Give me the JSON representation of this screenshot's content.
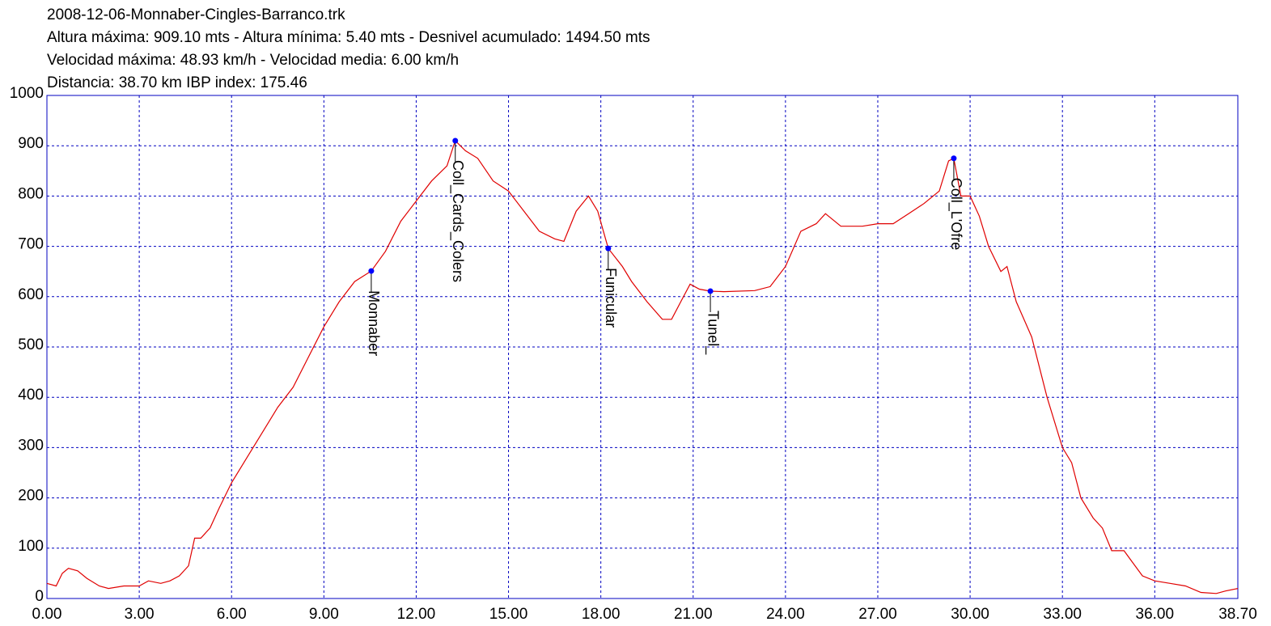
{
  "chart_data": {
    "type": "line",
    "title": "2008-12-06-Monnaber-Cingles-Barranco.trk",
    "subtitles": [
      "Altura máxima: 909.10 mts - Altura mínima: 5.40 mts - Desnivel acumulado: 1494.50 mts",
      "Velocidad máxima: 48.93 km/h - Velocidad media: 6.00 km/h",
      "Distancia: 38.70 km IBP index: 175.46"
    ],
    "color": "#e00000",
    "x": [
      0.0,
      0.3,
      0.5,
      0.7,
      1.0,
      1.3,
      1.7,
      2.0,
      2.5,
      3.0,
      3.3,
      3.7,
      4.0,
      4.3,
      4.6,
      4.8,
      5.0,
      5.3,
      5.6,
      6.0,
      6.5,
      7.0,
      7.5,
      8.0,
      8.5,
      9.0,
      9.5,
      10.0,
      10.54,
      11.0,
      11.5,
      12.0,
      12.5,
      13.0,
      13.27,
      13.6,
      14.0,
      14.5,
      15.0,
      15.5,
      16.0,
      16.5,
      16.8,
      17.2,
      17.6,
      17.9,
      18.24,
      18.7,
      19.0,
      19.5,
      20.0,
      20.3,
      20.6,
      20.9,
      21.2,
      21.56,
      22.0,
      23.0,
      23.5,
      24.0,
      24.5,
      25.0,
      25.3,
      25.8,
      26.5,
      27.0,
      27.5,
      28.0,
      28.5,
      29.0,
      29.3,
      29.47,
      29.7,
      30.0,
      30.3,
      30.6,
      31.0,
      31.2,
      31.5,
      32.0,
      32.5,
      33.0,
      33.3,
      33.6,
      34.0,
      34.3,
      34.6,
      35.0,
      35.3,
      35.6,
      36.0,
      36.5,
      37.0,
      37.5,
      38.0,
      38.3,
      38.7
    ],
    "values": [
      30,
      25,
      50,
      60,
      55,
      40,
      25,
      20,
      25,
      25,
      35,
      30,
      35,
      45,
      65,
      120,
      120,
      140,
      180,
      230,
      280,
      330,
      380,
      420,
      480,
      540,
      590,
      630,
      651,
      690,
      750,
      790,
      830,
      860,
      910,
      890,
      875,
      830,
      810,
      770,
      730,
      715,
      710,
      770,
      800,
      770,
      696,
      660,
      630,
      590,
      555,
      555,
      590,
      625,
      615,
      611,
      610,
      612,
      620,
      660,
      730,
      745,
      765,
      740,
      740,
      745,
      745,
      765,
      785,
      810,
      870,
      875,
      800,
      800,
      760,
      700,
      650,
      660,
      590,
      520,
      400,
      300,
      270,
      200,
      160,
      140,
      95,
      95,
      70,
      45,
      35,
      30,
      25,
      12,
      10,
      15,
      20
    ],
    "waypoints": {
      "names": [
        "Monnaber",
        "Coll_Cards_Colers",
        "Funicular",
        "Tunel_",
        "Coll_L'Ofre"
      ],
      "x": [
        10.54,
        13.27,
        18.24,
        21.56,
        29.47
      ],
      "values": [
        651,
        910,
        696,
        611,
        875
      ],
      "color": "#0000ff"
    },
    "xlim": [
      0,
      38.7
    ],
    "xticks": [
      {
        "value": 0,
        "label": "0.00"
      },
      {
        "value": 3,
        "label": "3.00"
      },
      {
        "value": 6,
        "label": "6.00"
      },
      {
        "value": 9,
        "label": "9.00"
      },
      {
        "value": 12,
        "label": "12.00"
      },
      {
        "value": 15,
        "label": "15.00"
      },
      {
        "value": 18,
        "label": "18.00"
      },
      {
        "value": 21,
        "label": "21.00"
      },
      {
        "value": 24,
        "label": "24.00"
      },
      {
        "value": 27,
        "label": "27.00"
      },
      {
        "value": 30,
        "label": "30.00"
      },
      {
        "value": 33,
        "label": "33.00"
      },
      {
        "value": 36,
        "label": "36.00"
      },
      {
        "value": 38.7,
        "label": "38.70"
      }
    ],
    "ylim": [
      0,
      1000
    ],
    "yticks": [
      0,
      100,
      200,
      300,
      400,
      500,
      600,
      700,
      800,
      900,
      1000
    ],
    "grid": true
  }
}
